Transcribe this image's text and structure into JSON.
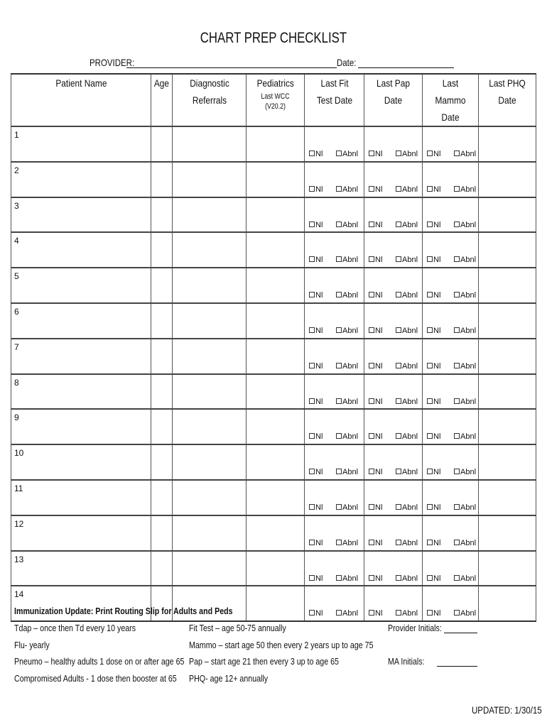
{
  "title": "CHART PREP CHECKLIST",
  "provider_label": "PROVIDER:",
  "date_label": "Date:",
  "columns": [
    {
      "label": "Patient Name",
      "sub": ""
    },
    {
      "label": "Age",
      "sub": ""
    },
    {
      "label": "Diagnostic Referrals",
      "sub": ""
    },
    {
      "label": "Pediatrics",
      "sub": "Last WCC (V20.2)"
    },
    {
      "label": "Last Fit Test Date",
      "sub": ""
    },
    {
      "label": "Last Pap Date",
      "sub": ""
    },
    {
      "label": "Last Mammo Date",
      "sub": ""
    },
    {
      "label": "Last PHQ Date",
      "sub": ""
    }
  ],
  "rows": [
    "1",
    "2",
    "3",
    "4",
    "5",
    "6",
    "7",
    "8",
    "9",
    "10",
    "11",
    "12",
    "13",
    "14"
  ],
  "checkbox_labels": {
    "normal": "Nl",
    "abnormal": "Abnl"
  },
  "notes": {
    "heading": "Immunization Update:  Print Routing Slip for Adults and Peds",
    "left": [
      "Tdap – once then Td every  10 years",
      "Flu- yearly",
      "Pneumo – healthy adults 1 dose on or after age 65",
      "Compromised Adults -  1 dose then booster at 65"
    ],
    "middle": [
      "Fit Test – age 50-75 annually",
      "Mammo – start age 50 then every 2 years up to age 75",
      "Pap – start age 21 then every 3 up to age 65",
      "PHQ- age 12+ annually"
    ],
    "provider_initials": "Provider Initials:",
    "ma_initials": "MA Initials:"
  },
  "updated": "UPDATED:  1/30/15"
}
